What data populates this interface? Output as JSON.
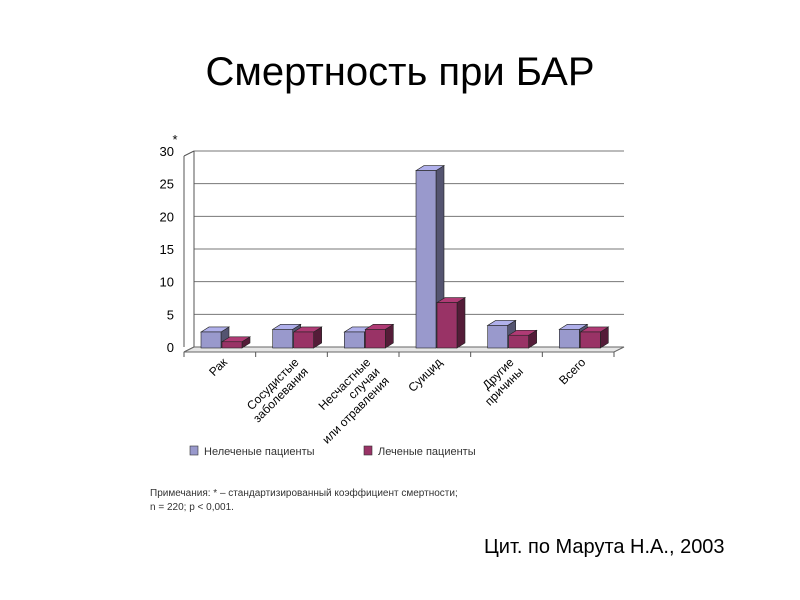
{
  "slide": {
    "title": "Смертность при БАР",
    "citation": "Цит. по Марута Н.А., 2003",
    "notes": [
      "Примечания: * –  стандартизированный коэффициент смертности;",
      "n = 220; р < 0,001."
    ]
  },
  "chart_data": {
    "type": "bar",
    "title": "",
    "xlabel": "",
    "ylabel": "*",
    "ylim": [
      0,
      30
    ],
    "yticks": [
      0,
      5,
      10,
      15,
      20,
      25,
      30
    ],
    "grid": true,
    "legend_position": "bottom",
    "categories": [
      [
        "Рак"
      ],
      [
        "Сосудистые",
        "заболевания"
      ],
      [
        "Несчастные",
        "случаи",
        "или отравления"
      ],
      [
        "Суицид"
      ],
      [
        "Другие",
        "причины"
      ],
      [
        "Всего"
      ]
    ],
    "series": [
      {
        "name": "Нелеченые пациенты",
        "color": "#9999cc",
        "values": [
          2.3,
          2.7,
          2.3,
          27,
          3.3,
          2.7
        ]
      },
      {
        "name": "Леченые пациенты",
        "color": "#993366",
        "values": [
          0.8,
          2.3,
          2.7,
          6.8,
          1.8,
          2.3
        ]
      }
    ]
  }
}
